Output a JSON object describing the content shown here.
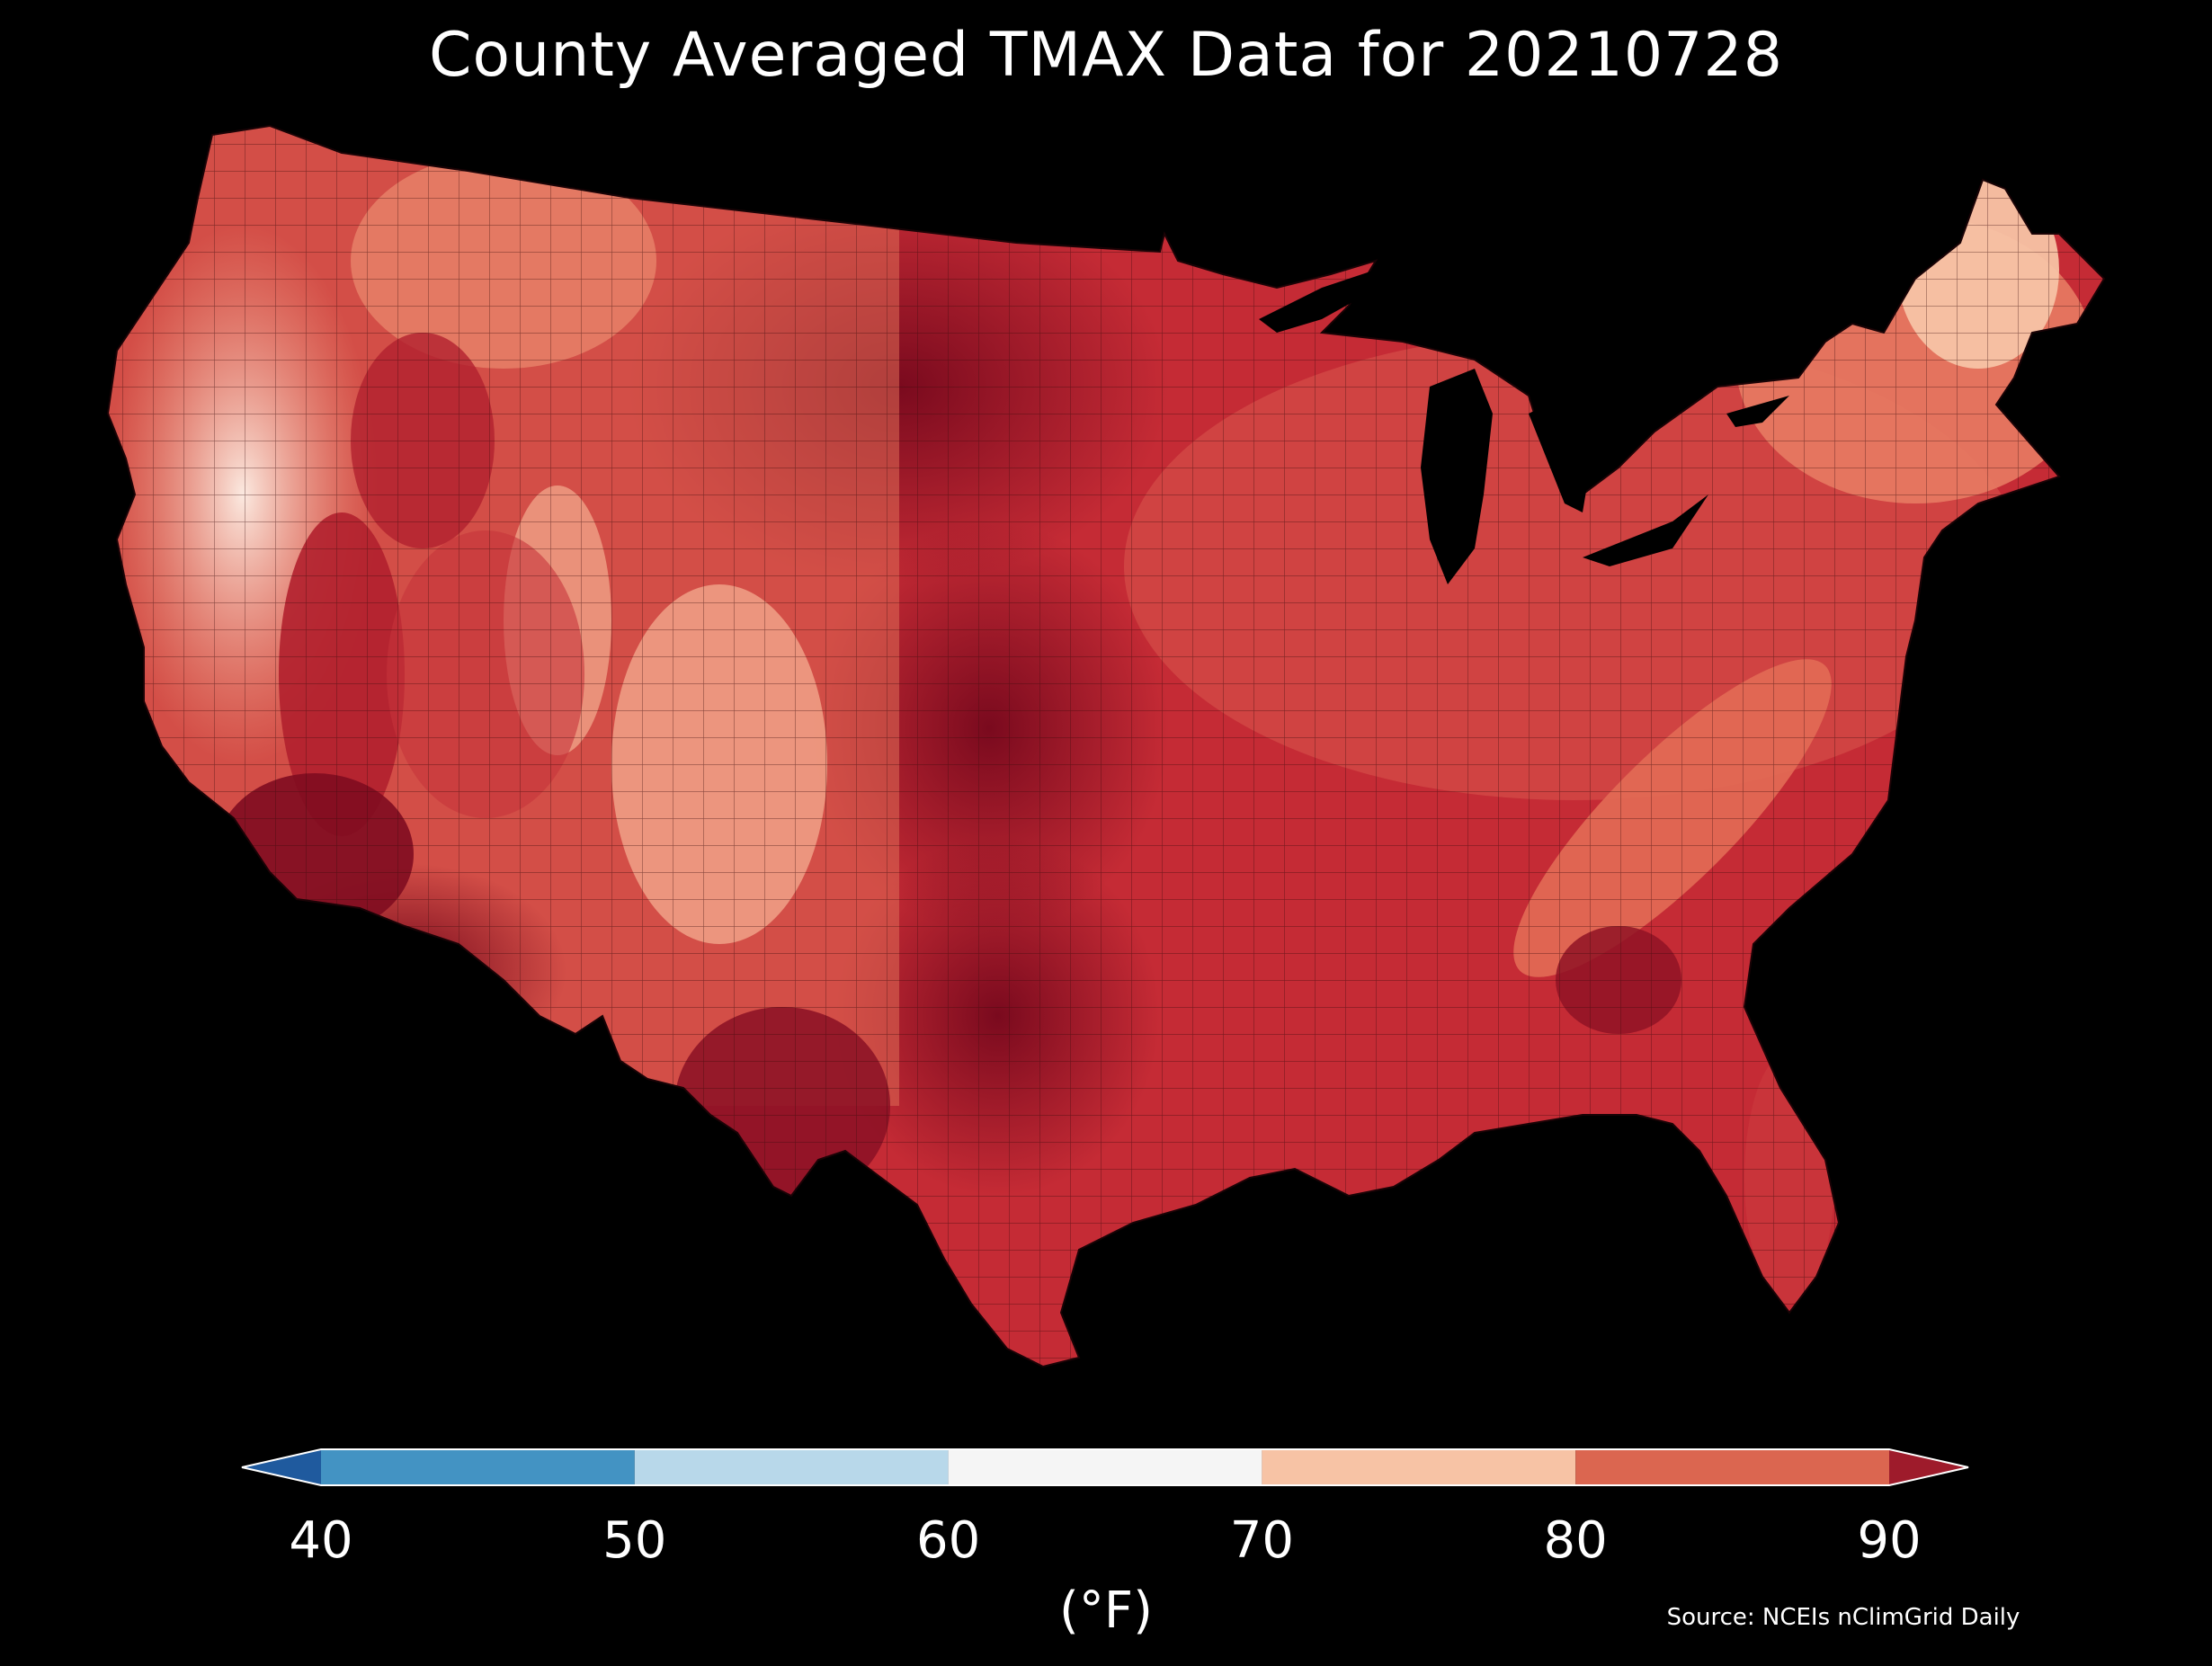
{
  "title": "County Averaged TMAX Data for 20210728",
  "colorbar": {
    "ticks": [
      "40",
      "50",
      "60",
      "70",
      "80",
      "90"
    ],
    "tick_values": [
      40,
      50,
      60,
      70,
      80,
      90
    ],
    "unit_label": "(°F)",
    "extend": "both",
    "bins": [
      {
        "min": 40,
        "max": 50,
        "color": "#4393c3"
      },
      {
        "min": 50,
        "max": 60,
        "color": "#b8d8ea"
      },
      {
        "min": 60,
        "max": 70,
        "color": "#f5f5f5"
      },
      {
        "min": 70,
        "max": 80,
        "color": "#f7c3a5"
      },
      {
        "min": 80,
        "max": 90,
        "color": "#db6650"
      }
    ],
    "under_color": "#1f5a9e",
    "over_color": "#9e1b2b"
  },
  "source": "Source: NCEIs nClimGrid Daily",
  "map": {
    "region": "Contiguous United States",
    "unit": "°F",
    "background": "#000000",
    "county_border_color": "#3a0a0a"
  }
}
